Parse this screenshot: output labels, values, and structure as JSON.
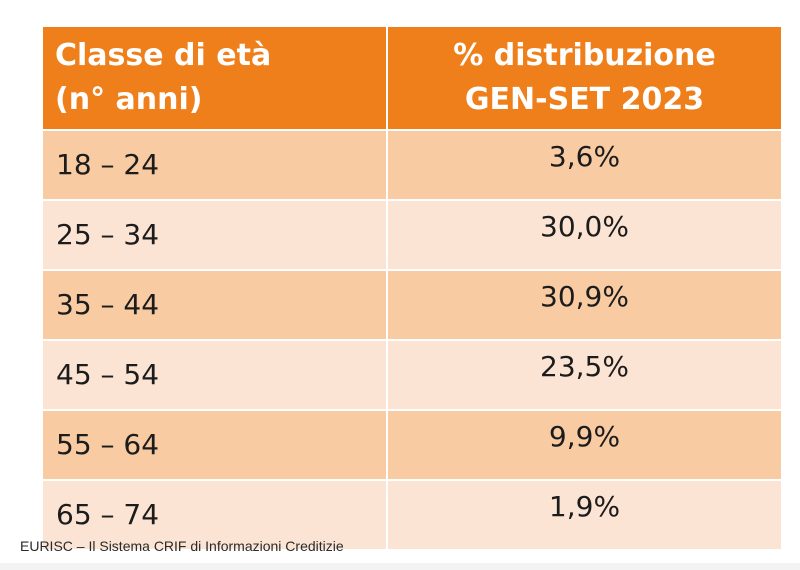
{
  "chart_data": {
    "type": "table",
    "columns": [
      {
        "line1": "Classe di età",
        "line2": "(n° anni)"
      },
      {
        "line1": "% distribuzione",
        "line2": "GEN-SET 2023"
      }
    ],
    "rows": [
      {
        "range": "18 – 24",
        "pct": "3,6%",
        "value": 3.6
      },
      {
        "range": "25 – 34",
        "pct": "30,0%",
        "value": 30.0
      },
      {
        "range": "35 – 44",
        "pct": "30,9%",
        "value": 30.9
      },
      {
        "range": "45 – 54",
        "pct": "23,5%",
        "value": 23.5
      },
      {
        "range": "55 – 64",
        "pct": "9,9%",
        "value": 9.9
      },
      {
        "range": "65 – 74",
        "pct": "1,9%",
        "value": 1.9
      }
    ],
    "colors": {
      "header": "#ef7f1a",
      "row_dark": "#f8cba2",
      "row_light": "#fbe4d3"
    }
  },
  "caption": "EURISC – Il Sistema CRIF di Informazioni Creditizie"
}
